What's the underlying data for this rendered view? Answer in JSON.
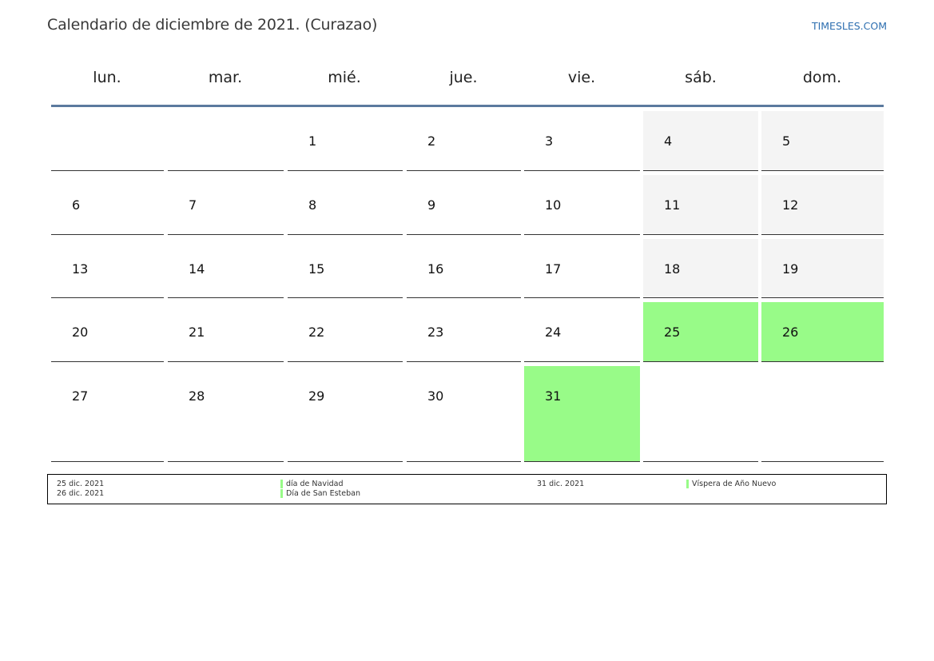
{
  "title": "Calendario de diciembre de 2021. (Curazao)",
  "brand": "TIMESLES.COM",
  "weekdays": [
    "lun.",
    "mar.",
    "mié.",
    "jue.",
    "vie.",
    "sáb.",
    "dom."
  ],
  "colors": {
    "holiday": "#98fb88",
    "weekend": "#f4f4f4",
    "header_rule": "#5b7a9e",
    "brand": "#2e6fb0"
  },
  "weeks": [
    [
      "",
      "",
      "1",
      "2",
      "3",
      "4",
      "5"
    ],
    [
      "6",
      "7",
      "8",
      "9",
      "10",
      "11",
      "12"
    ],
    [
      "13",
      "14",
      "15",
      "16",
      "17",
      "18",
      "19"
    ],
    [
      "20",
      "21",
      "22",
      "23",
      "24",
      "25",
      "26"
    ],
    [
      "27",
      "28",
      "29",
      "30",
      "31",
      "",
      ""
    ]
  ],
  "holidays": [
    "25",
    "26",
    "31"
  ],
  "legend": [
    {
      "date": "25 dic. 2021",
      "name": "día de Navidad"
    },
    {
      "date": "26 dic. 2021",
      "name": "Día de San Esteban"
    },
    {
      "date": "31 dic. 2021",
      "name": "Víspera de Año Nuevo"
    }
  ]
}
